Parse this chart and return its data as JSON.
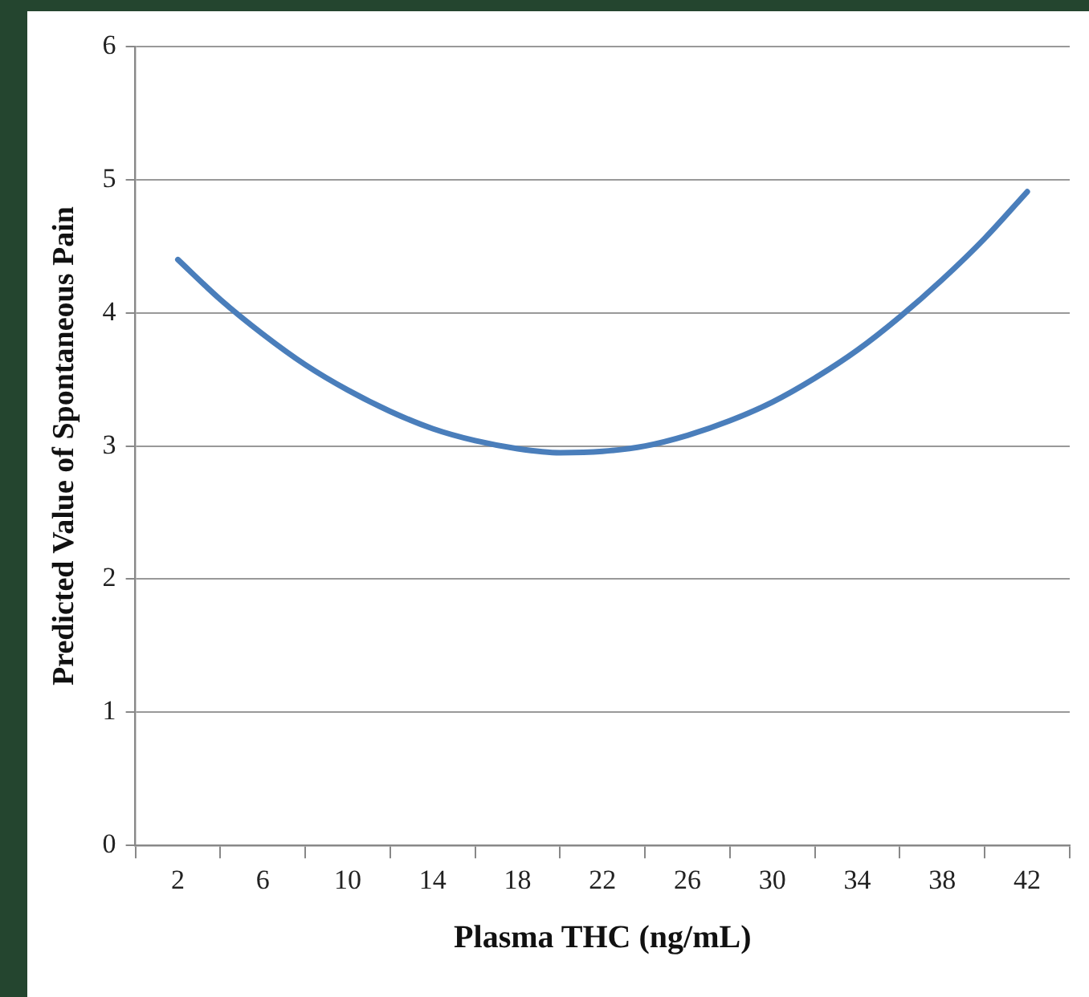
{
  "chart_data": {
    "type": "line",
    "xlabel": "Plasma THC (ng/mL)",
    "ylabel": "Predicted Value of Spontaneous Pain",
    "x": [
      2,
      4,
      6,
      8,
      10,
      12,
      14,
      16,
      18,
      20,
      22,
      24,
      26,
      28,
      30,
      32,
      34,
      36,
      38,
      40,
      42
    ],
    "series": [
      {
        "color": "#4a7ebb",
        "values": [
          4.4,
          4.1,
          3.84,
          3.61,
          3.42,
          3.26,
          3.13,
          3.04,
          2.98,
          2.95,
          2.96,
          3.0,
          3.08,
          3.19,
          3.33,
          3.51,
          3.72,
          3.97,
          4.25,
          4.56,
          4.91
        ]
      }
    ],
    "xlim": [
      0,
      44
    ],
    "xticks": [
      {
        "value": 0,
        "label": null
      },
      2,
      {
        "value": 4,
        "label": null
      },
      6,
      {
        "value": 8,
        "label": null
      },
      10,
      {
        "value": 12,
        "label": null
      },
      14,
      {
        "value": 16,
        "label": null
      },
      18,
      {
        "value": 20,
        "label": null
      },
      22,
      {
        "value": 24,
        "label": null
      },
      26,
      {
        "value": 28,
        "label": null
      },
      30,
      {
        "value": 32,
        "label": null
      },
      34,
      {
        "value": 36,
        "label": null
      },
      38,
      {
        "value": 40,
        "label": null
      },
      42,
      {
        "value": 44,
        "label": null
      }
    ],
    "ylim": [
      0,
      6
    ],
    "yticks": [
      0,
      1,
      2,
      3,
      4,
      5,
      6
    ],
    "grid": "y",
    "legend": false,
    "marker": "none",
    "line_style": "solid"
  }
}
